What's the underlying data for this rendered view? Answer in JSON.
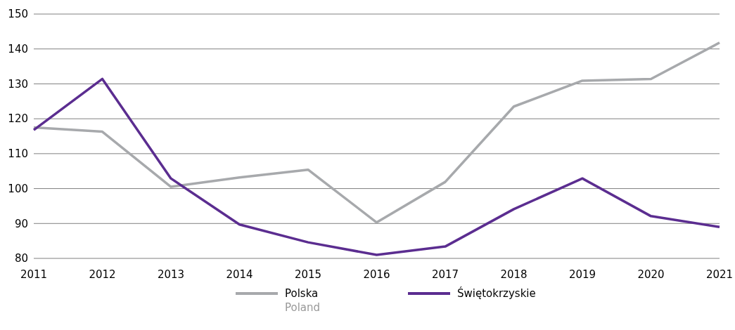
{
  "chart_data": {
    "type": "line",
    "x": [
      2011,
      2012,
      2013,
      2014,
      2015,
      2016,
      2017,
      2018,
      2019,
      2020,
      2021
    ],
    "xlim": [
      2011,
      2021
    ],
    "xticks": [
      2011,
      2012,
      2013,
      2014,
      2015,
      2016,
      2017,
      2018,
      2019,
      2020,
      2021
    ],
    "ylim": [
      80,
      150
    ],
    "yticks": [
      80,
      90,
      100,
      110,
      120,
      130,
      140,
      150
    ],
    "grid": "y",
    "legend": "bottom",
    "marker": "none",
    "line_style": "solid",
    "series": [
      {
        "name": "Polska\nPoland",
        "color": "#a7a9ac",
        "values": [
          117.5,
          116.3,
          100.5,
          103.2,
          105.4,
          90.3,
          101.9,
          123.5,
          130.9,
          131.4,
          141.8
        ]
      },
      {
        "name": "Świętokrzyskie",
        "color": "#5b2d90",
        "values": [
          116.8,
          131.4,
          102.9,
          89.7,
          84.6,
          81.0,
          83.4,
          94.1,
          102.9,
          92.1,
          89.0
        ]
      }
    ]
  }
}
